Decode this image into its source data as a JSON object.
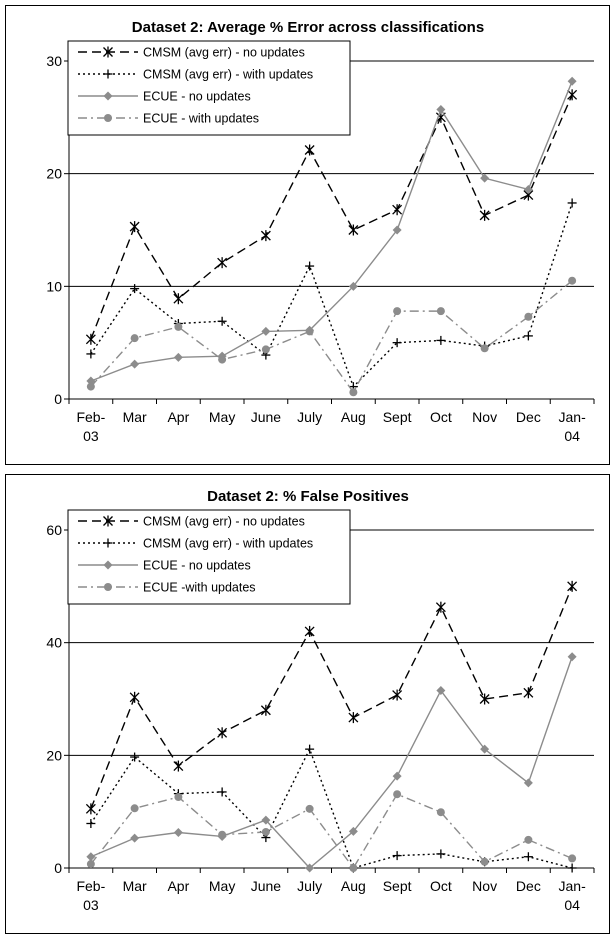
{
  "chart_data": [
    {
      "type": "line",
      "title": "Dataset 2: Average % Error across classifications",
      "categories": [
        [
          "Feb-",
          "03"
        ],
        [
          "Mar"
        ],
        [
          "Apr"
        ],
        [
          "May"
        ],
        [
          "June"
        ],
        [
          "July"
        ],
        [
          "Aug"
        ],
        [
          "Sept"
        ],
        [
          "Oct"
        ],
        [
          "Nov"
        ],
        [
          "Dec"
        ],
        [
          "Jan-",
          "04"
        ]
      ],
      "ylim": [
        0,
        30
      ],
      "yticks": [
        "0",
        "10",
        "20",
        "30"
      ],
      "ytick_values": [
        0,
        10,
        20,
        30
      ],
      "grid": true,
      "legend_position": "top-left",
      "series": [
        {
          "name": "CMSM (avg err) - no updates",
          "style": "dashed",
          "marker": "star",
          "color": "#000000",
          "values": [
            5.3,
            15.3,
            8.9,
            12.1,
            14.5,
            22.1,
            15.0,
            16.8,
            25.0,
            16.3,
            18.1,
            27.0
          ]
        },
        {
          "name": "CMSM (avg err) - with updates",
          "style": "dotted",
          "marker": "plus",
          "color": "#000000",
          "values": [
            4.0,
            9.8,
            6.7,
            6.9,
            3.9,
            11.8,
            1.1,
            5.0,
            5.2,
            4.7,
            5.6,
            17.4
          ]
        },
        {
          "name": "ECUE - no updates",
          "style": "solid",
          "marker": "diamond",
          "color": "#8c8c8c",
          "values": [
            1.6,
            3.1,
            3.7,
            3.8,
            6.0,
            6.1,
            10.0,
            15.0,
            25.7,
            19.6,
            18.6,
            28.2
          ]
        },
        {
          "name": "ECUE - with updates",
          "style": "dashdot",
          "marker": "circle",
          "color": "#8c8c8c",
          "values": [
            1.1,
            5.4,
            6.4,
            3.5,
            4.4,
            6.0,
            0.6,
            7.8,
            7.8,
            4.5,
            7.3,
            10.5
          ]
        }
      ]
    },
    {
      "type": "line",
      "title": "Dataset 2: % False Positives",
      "categories": [
        [
          "Feb-",
          "03"
        ],
        [
          "Mar"
        ],
        [
          "Apr"
        ],
        [
          "May"
        ],
        [
          "June"
        ],
        [
          "July"
        ],
        [
          "Aug"
        ],
        [
          "Sept"
        ],
        [
          "Oct"
        ],
        [
          "Nov"
        ],
        [
          "Dec"
        ],
        [
          "Jan-",
          "04"
        ]
      ],
      "ylim": [
        0,
        60
      ],
      "yticks": [
        "0",
        "20",
        "40",
        "60"
      ],
      "ytick_values": [
        0,
        20,
        40,
        60
      ],
      "grid": true,
      "legend_position": "top-left",
      "series": [
        {
          "name": "CMSM (avg err) - no updates",
          "style": "dashed",
          "marker": "star",
          "color": "#000000",
          "values": [
            10.5,
            30.3,
            18.1,
            24.0,
            28.0,
            42.0,
            26.7,
            30.7,
            46.3,
            30.0,
            31.1,
            50.0
          ]
        },
        {
          "name": "CMSM (avg err) - with updates",
          "style": "dotted",
          "marker": "plus",
          "color": "#000000",
          "values": [
            7.9,
            19.7,
            13.2,
            13.5,
            5.4,
            21.1,
            0.0,
            2.2,
            2.5,
            1.1,
            2.0,
            0.0
          ]
        },
        {
          "name": "ECUE - no updates",
          "style": "solid",
          "marker": "diamond",
          "color": "#8c8c8c",
          "values": [
            2.0,
            5.3,
            6.3,
            5.6,
            8.5,
            0.0,
            6.5,
            16.3,
            31.5,
            21.1,
            15.1,
            37.5
          ]
        },
        {
          "name": "ECUE -with updates",
          "style": "dashdot",
          "marker": "circle",
          "color": "#8c8c8c",
          "values": [
            0.7,
            10.6,
            12.6,
            5.9,
            6.4,
            10.5,
            0.0,
            13.1,
            9.9,
            1.1,
            5.0,
            1.7
          ]
        }
      ]
    }
  ]
}
